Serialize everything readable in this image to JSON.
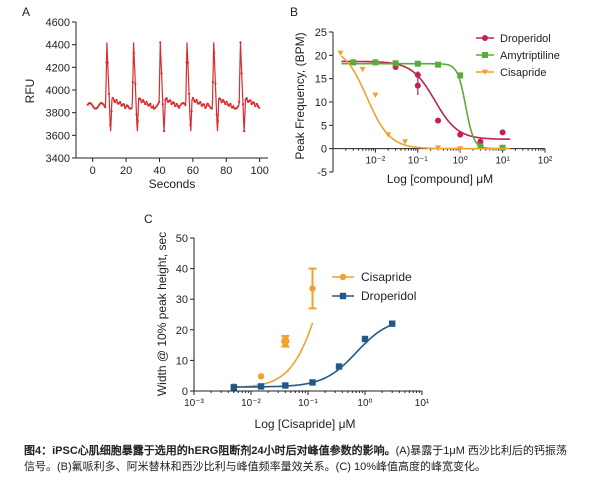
{
  "caption": {
    "bold": "图4：iPSC心肌细胞暴露于选用的hERG阻断剂24小时后对峰值参数的影响。",
    "text": "(A)暴露于1μM 西沙比利后的钙振荡信号。(B)氟哌利多、阿米替林和西沙比利与峰值频率量效关系。(C) 10%峰值高度的峰宽变化。"
  },
  "colors": {
    "droperidol": "#c0234b",
    "amytriptiline": "#5aab3c",
    "cisapride": "#f0a12e",
    "droperidol_c": "#1f5a8a",
    "trace": "#d62d2d"
  },
  "chart_data": [
    {
      "id": "A",
      "panel_label": "A",
      "type": "line",
      "xlabel": "Seconds",
      "ylabel": "RFU",
      "xlim": [
        -10,
        105
      ],
      "ylim": [
        3400,
        4600
      ],
      "xticks": [
        0,
        20,
        40,
        60,
        80,
        100
      ],
      "yticks": [
        3400,
        3600,
        3800,
        4000,
        4200,
        4400,
        4600
      ],
      "peak_times": [
        8.5,
        24.5,
        40.5,
        56.5,
        72.5,
        88.5
      ],
      "baseline": 3860,
      "peak": 4420,
      "trough": 3620,
      "trace_start": -3,
      "trace_end": 100
    },
    {
      "id": "B",
      "panel_label": "B",
      "type": "scatter",
      "xlabel": "Log [compound] μM",
      "ylabel": "Peak Frequency, (BPM)",
      "x_log": true,
      "xlim_exp": [
        -3,
        2
      ],
      "xtick_exps": [
        -2,
        -1,
        0,
        1,
        2
      ],
      "ylim": [
        -5,
        25
      ],
      "yticks": [
        -5,
        0,
        5,
        10,
        15,
        20,
        25
      ],
      "legend_position": "top-right",
      "series": [
        {
          "name": "Droperidol",
          "marker": "circle",
          "x": [
            0.003,
            0.01,
            0.03,
            0.1,
            0.1,
            0.3,
            1,
            3,
            10
          ],
          "y": [
            18.5,
            18.5,
            17.5,
            15.8,
            13.5,
            6.0,
            3.0,
            1.5,
            3.5
          ],
          "err": [
            0,
            0,
            0,
            0.8,
            2.0,
            0,
            0,
            0,
            0
          ],
          "fit": {
            "top": 18.7,
            "bottom": 2.0,
            "log_ec50": -0.6,
            "hill": 1.6
          }
        },
        {
          "name": "Amytriptiline",
          "marker": "square",
          "x": [
            0.003,
            0.01,
            0.03,
            0.1,
            0.3,
            1,
            3,
            10
          ],
          "y": [
            18.5,
            18.5,
            18.3,
            18.2,
            18.0,
            15.7,
            0.5,
            0.2
          ],
          "err": [
            0,
            0,
            0,
            0,
            0,
            0,
            0,
            0
          ],
          "fit": {
            "top": 18.2,
            "bottom": 0.0,
            "log_ec50": 0.13,
            "hill": 4.5
          }
        },
        {
          "name": "Cisapride",
          "marker": "triangle-down",
          "x": [
            0.0015,
            0.005,
            0.01,
            0.02,
            0.05,
            0.3,
            1
          ],
          "y": [
            20.5,
            17.0,
            11.5,
            3.0,
            1.5,
            0.2,
            0.0
          ],
          "err": [
            0,
            0,
            0,
            0,
            0,
            0,
            0
          ],
          "fit": {
            "top": 22.0,
            "bottom": 0.0,
            "log_ec50": -2.2,
            "hill": 1.6
          }
        }
      ]
    },
    {
      "id": "C",
      "panel_label": "C",
      "type": "scatter",
      "xlabel": "Log [Cisapride]  μM",
      "ylabel": "Width @ 10% peak height, sec",
      "x_log": true,
      "xlim_exp": [
        -3,
        1
      ],
      "xtick_exps": [
        -3,
        -2,
        -1,
        0,
        1
      ],
      "ylim": [
        0,
        50
      ],
      "yticks": [
        0,
        10,
        20,
        30,
        40,
        50
      ],
      "legend_position": "top-right",
      "series": [
        {
          "name": "Cisapride",
          "marker": "circle",
          "x": [
            0.005,
            0.015,
            0.04,
            0.04,
            0.12
          ],
          "y": [
            1.5,
            4.8,
            15.5,
            17.0,
            33.5
          ],
          "err": [
            0,
            0,
            1.0,
            1.0,
            6.5
          ],
          "fit": {
            "top": 70,
            "bottom": 1.0,
            "log_ec50": -0.7,
            "hill": 1.6,
            "xmax": 0.12
          }
        },
        {
          "name": "Droperidol",
          "marker": "square",
          "x": [
            0.005,
            0.015,
            0.04,
            0.12,
            0.35,
            1.0,
            3.0
          ],
          "y": [
            1.2,
            1.5,
            1.8,
            2.8,
            8.0,
            17.0,
            22.0
          ],
          "err": [
            0,
            0,
            0,
            0,
            0,
            0,
            0
          ],
          "fit": {
            "top": 24,
            "bottom": 1.3,
            "log_ec50": -0.15,
            "hill": 1.5
          }
        }
      ]
    }
  ]
}
